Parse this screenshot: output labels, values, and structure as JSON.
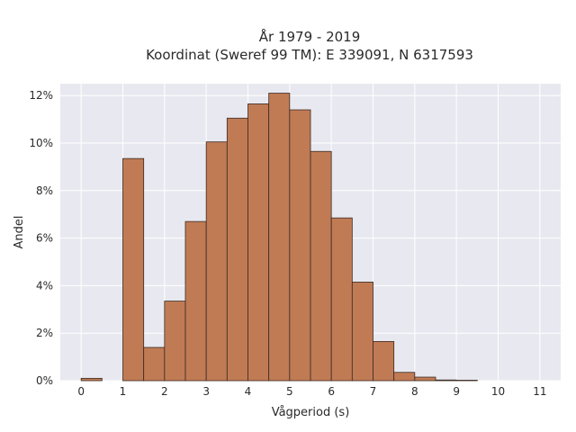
{
  "chart_data": {
    "type": "bar",
    "title": "År 1979 - 2019",
    "subtitle": "Koordinat (Sweref 99 TM): E 339091, N 6317593",
    "xlabel": "Vågperiod (s)",
    "ylabel": "Andel",
    "xlim": [
      -0.5,
      11.5
    ],
    "ylim": [
      0,
      12.5
    ],
    "x_ticks": [
      0,
      1,
      2,
      3,
      4,
      5,
      6,
      7,
      8,
      9,
      10,
      11
    ],
    "y_ticks": [
      0,
      2,
      4,
      6,
      8,
      10,
      12
    ],
    "y_tick_labels": [
      "0%",
      "2%",
      "4%",
      "6%",
      "8%",
      "10%",
      "12%"
    ],
    "bin_width": 0.5,
    "bin_starts": [
      0,
      0.5,
      1.0,
      1.5,
      2.0,
      2.5,
      3.0,
      3.5,
      4.0,
      4.5,
      5.0,
      5.5,
      6.0,
      6.5,
      7.0,
      7.5,
      8.0,
      8.5,
      9.0,
      9.5,
      10.0,
      10.5,
      11.0
    ],
    "values": [
      0.1,
      0,
      9.35,
      1.4,
      3.35,
      6.7,
      10.05,
      11.05,
      11.65,
      12.1,
      11.4,
      9.65,
      6.85,
      4.15,
      1.65,
      0.35,
      0.15,
      0.03,
      0.02,
      0,
      0,
      0,
      0
    ],
    "grid": true,
    "colors": {
      "bar_fill": "#c07b55",
      "bar_edge": "#3b2a22",
      "plot_background": "#e8e8f0",
      "grid": "#ffffff"
    }
  }
}
